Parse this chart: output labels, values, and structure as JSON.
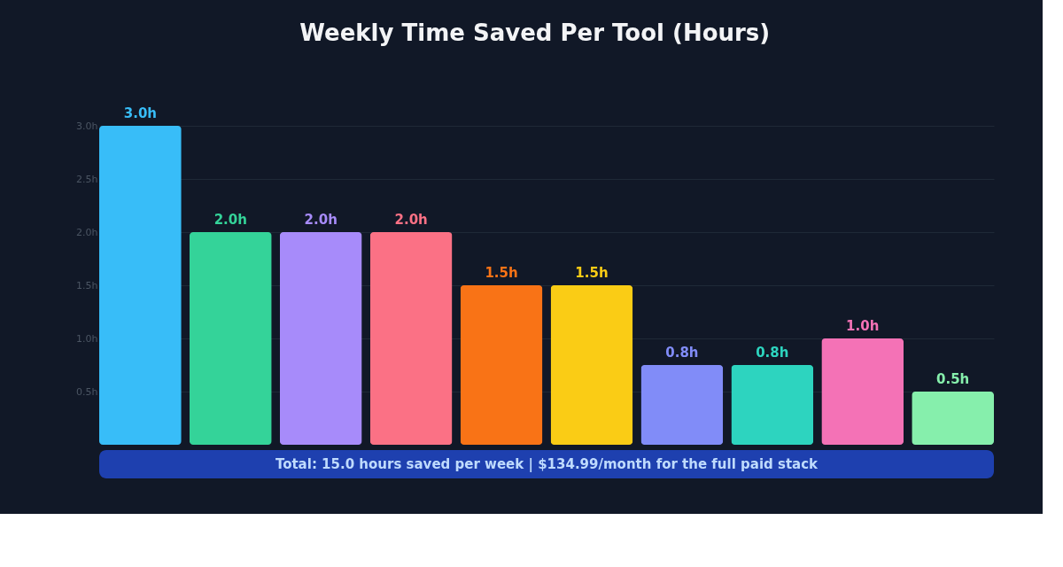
{
  "chart_data": {
    "type": "bar",
    "title": "Weekly Time Saved Per Tool (Hours)",
    "categories": [
      null,
      null,
      null,
      null,
      null,
      null,
      null,
      null,
      null,
      null
    ],
    "values": [
      3.0,
      2.0,
      2.0,
      2.0,
      1.5,
      1.5,
      0.75,
      0.75,
      1.0,
      0.5
    ],
    "value_labels": [
      "3.0h",
      "2.0h",
      "2.0h",
      "2.0h",
      "1.5h",
      "1.5h",
      "0.8h",
      "0.8h",
      "1.0h",
      "0.5h"
    ],
    "colors": [
      "#38bdf8",
      "#34d399",
      "#a78bfa",
      "#fb7185",
      "#f97316",
      "#facc15",
      "#818cf8",
      "#2dd4bf",
      "#f472b6",
      "#86efac"
    ],
    "ylim": [
      0,
      3
    ],
    "yticks": [
      {
        "value": 0.5,
        "label": "0.5h"
      },
      {
        "value": 1.0,
        "label": "1.0h"
      },
      {
        "value": 1.5,
        "label": "1.5h"
      },
      {
        "value": 2.0,
        "label": "2.0h"
      },
      {
        "value": 2.5,
        "label": "2.5h"
      },
      {
        "value": 3.0,
        "label": "3.0h"
      }
    ],
    "grid": "y",
    "tick_labels": "y",
    "annotations": [
      "Total: 15.0 hours saved per week  |  $134.99/month for the full paid stack"
    ]
  }
}
